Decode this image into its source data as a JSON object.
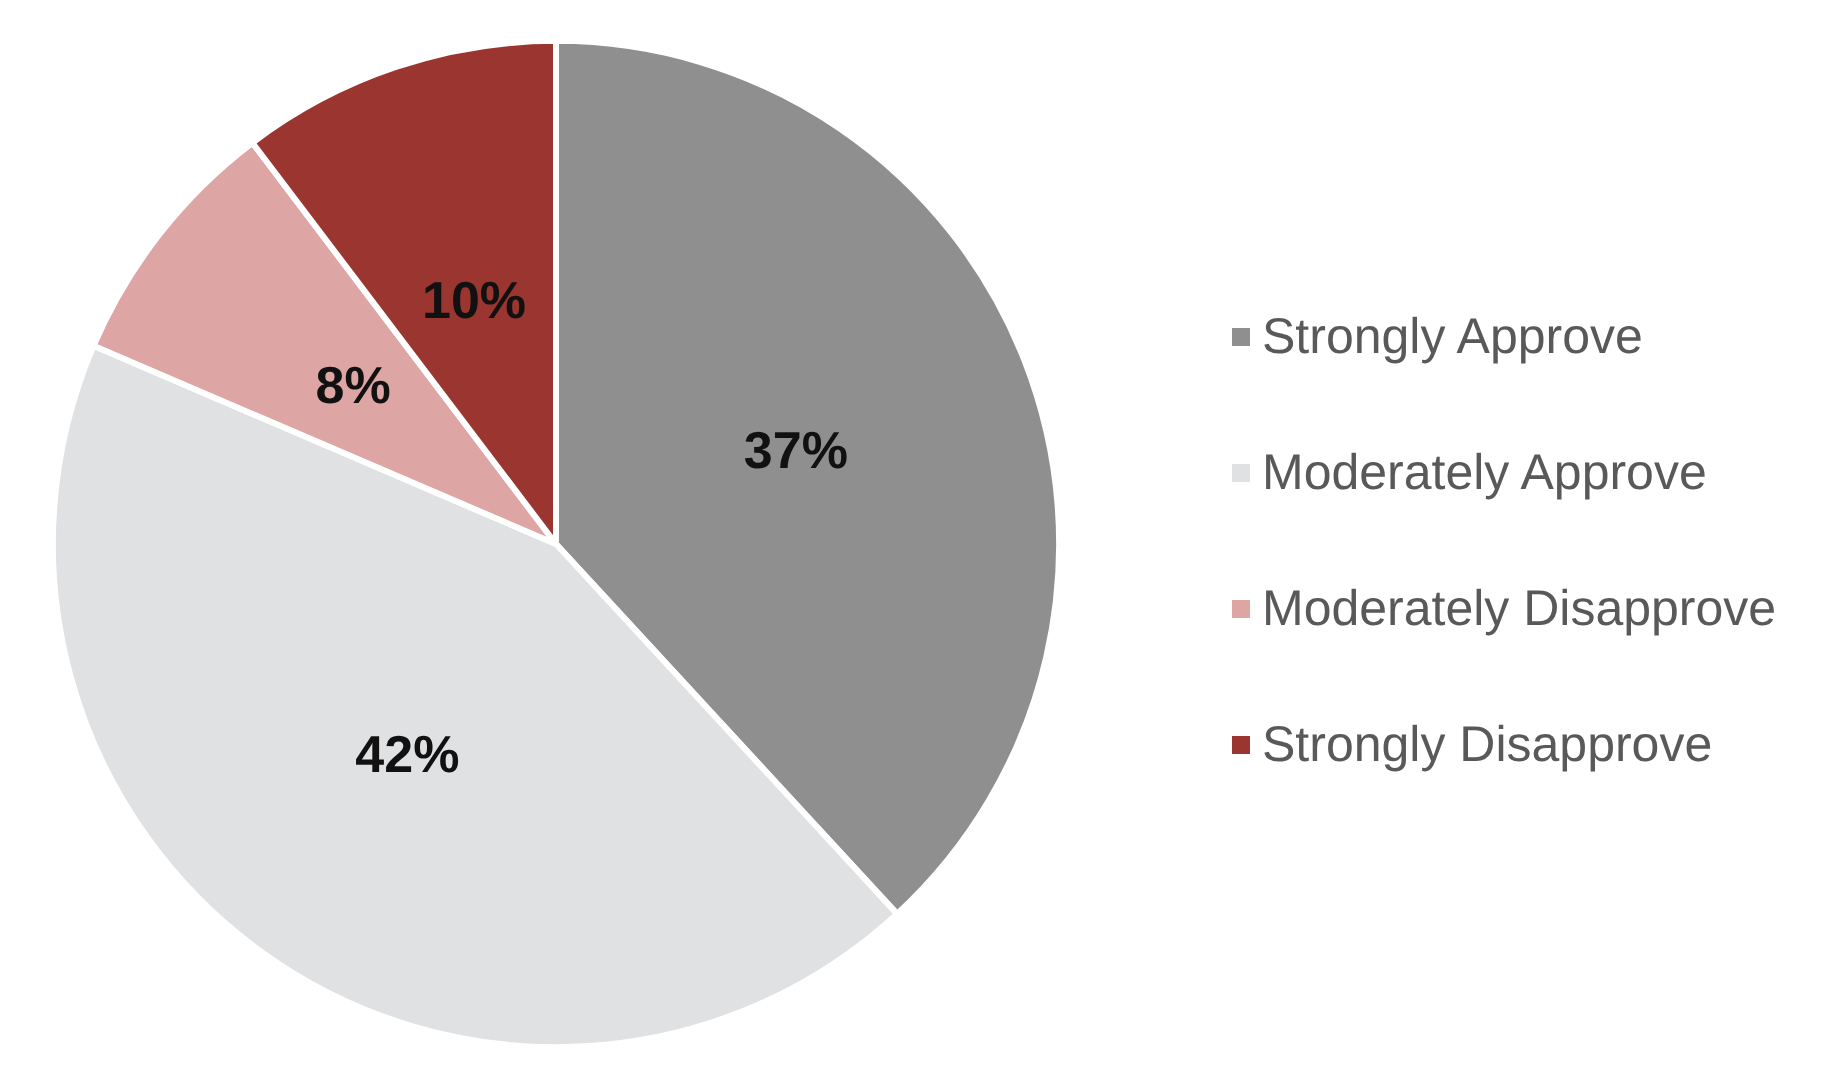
{
  "chart_data": {
    "type": "pie",
    "categories": [
      "Strongly Approve",
      "Moderately Approve",
      "Moderately Disapprove",
      "Strongly Disapprove"
    ],
    "values": [
      37,
      42,
      8,
      10
    ],
    "value_labels": [
      "37%",
      "42%",
      "8%",
      "10%"
    ],
    "colors": [
      "#8f8f8f",
      "#e0e1e3",
      "#dea5a5",
      "#9b3530"
    ],
    "legend": "right"
  }
}
